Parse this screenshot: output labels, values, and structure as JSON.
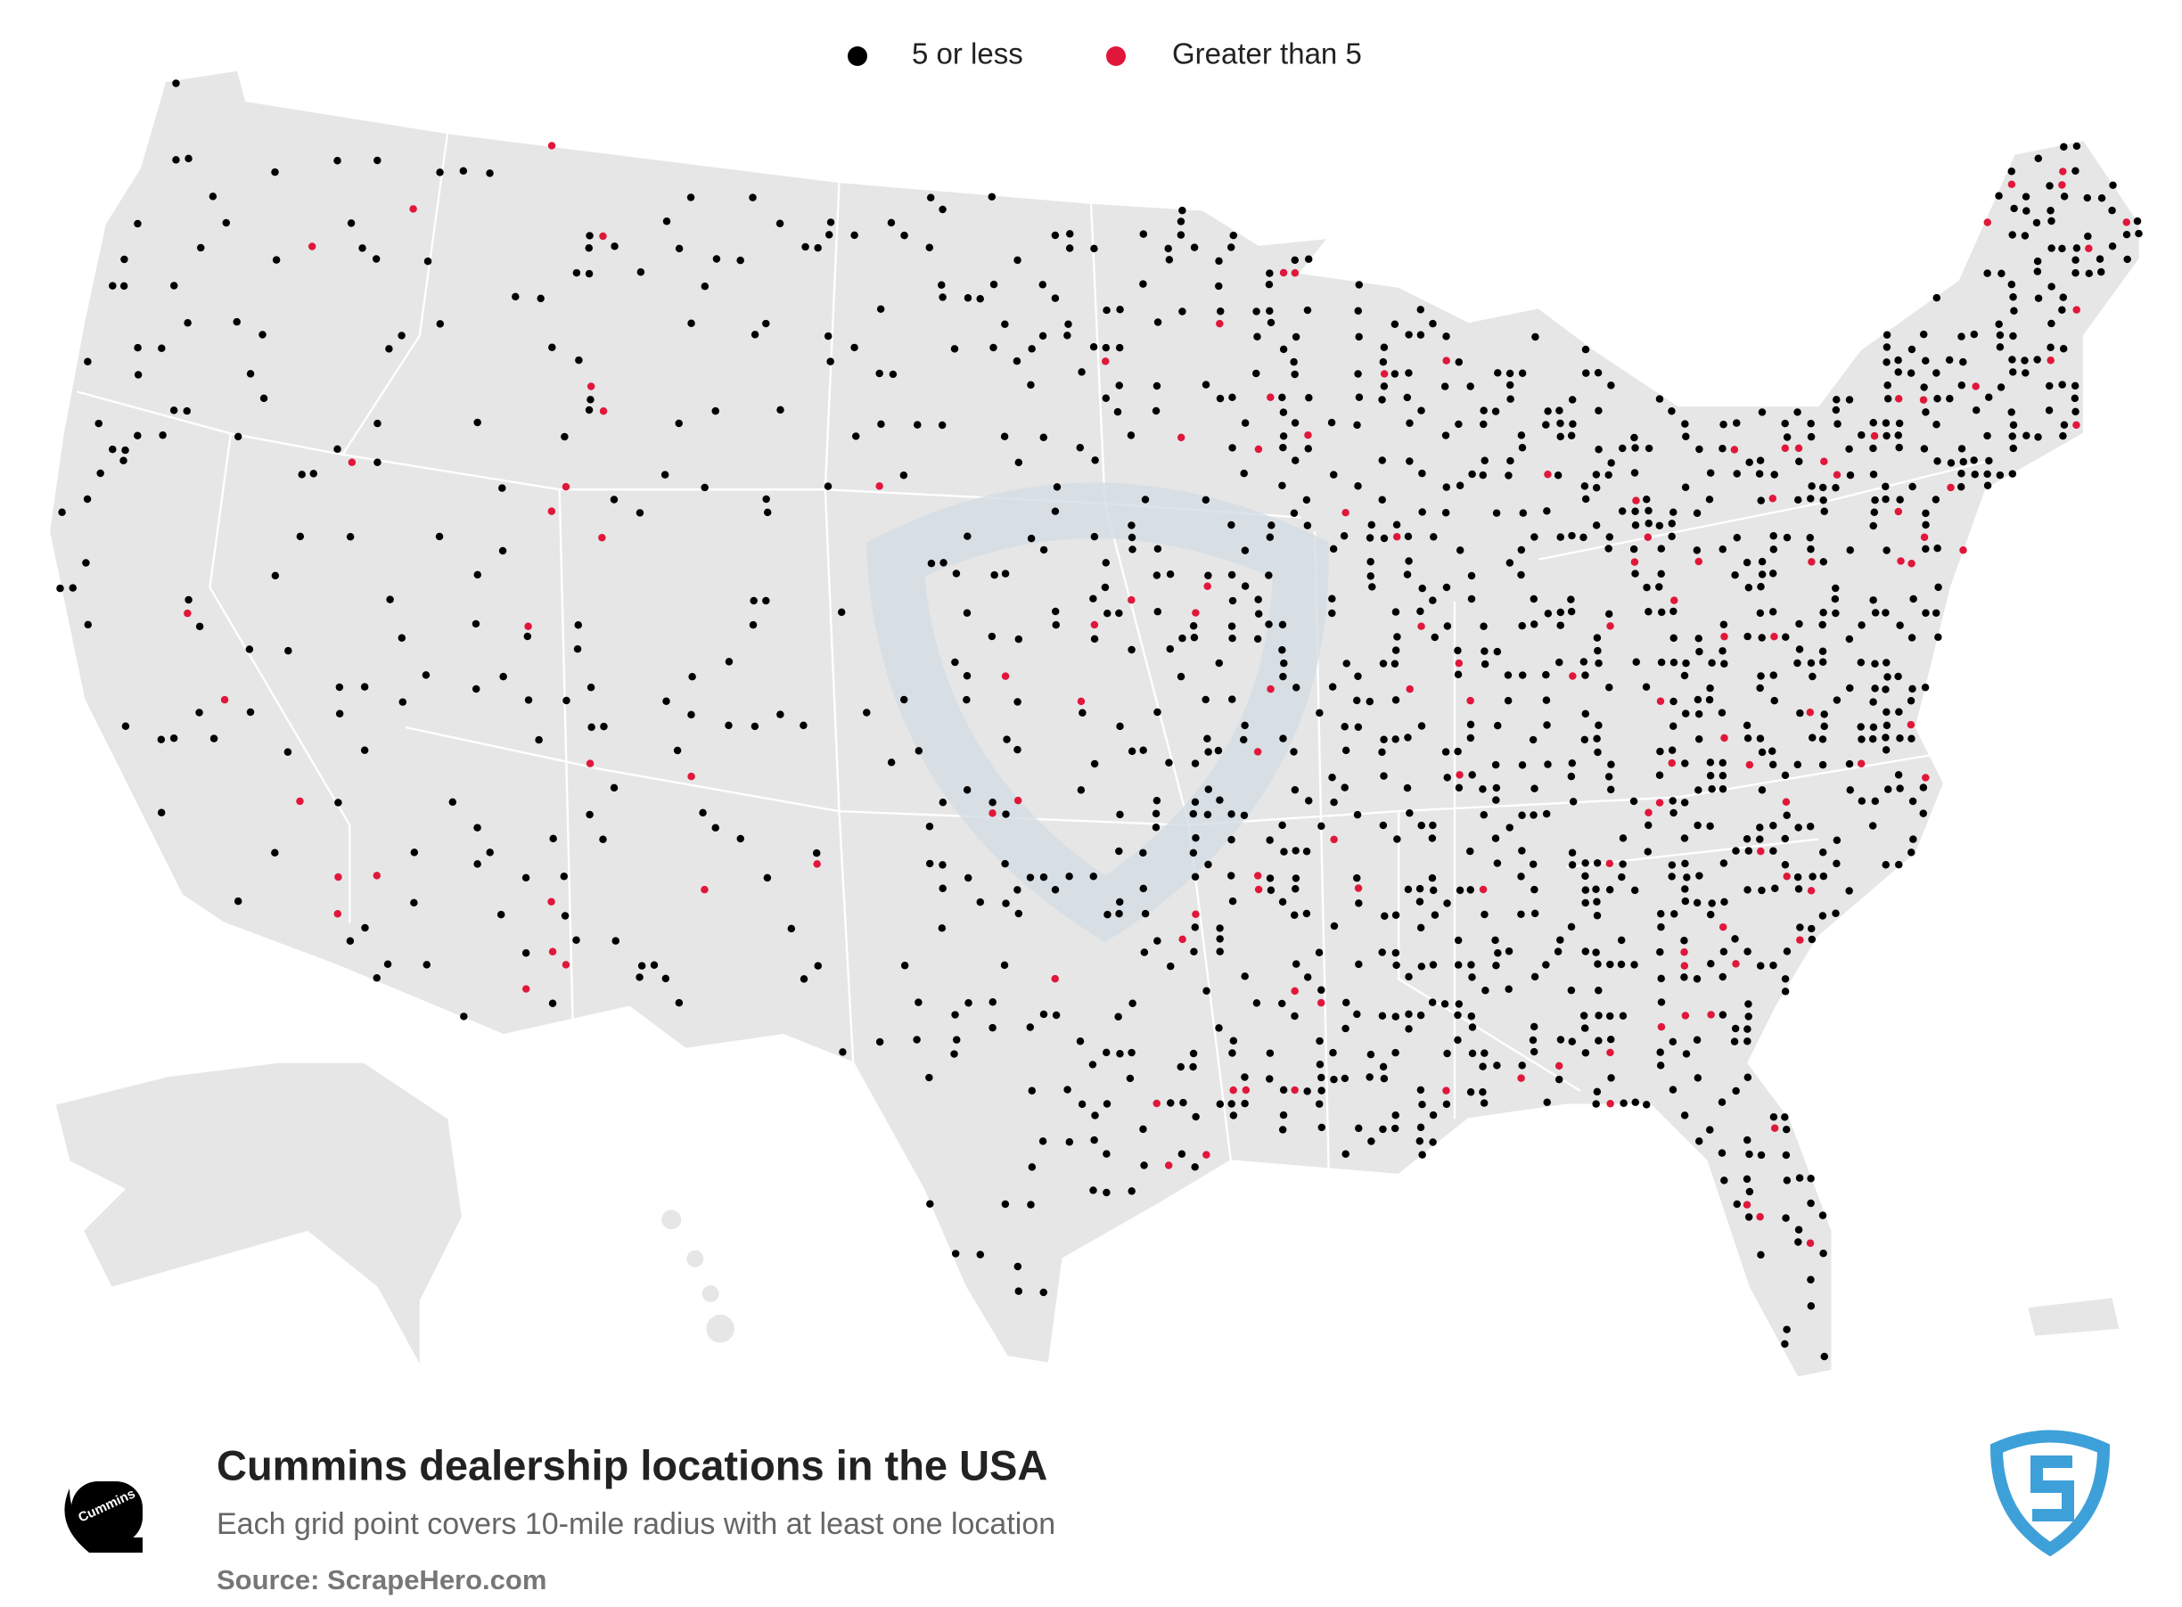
{
  "legend": [
    {
      "label": "5 or less",
      "color": "#000000"
    },
    {
      "label": "Greater than 5",
      "color": "#e0173a"
    }
  ],
  "title": "Cummins dealership locations in the USA",
  "subtitle": "Each grid point covers 10-mile radius with at least one location",
  "source": "Source: ScrapeHero.com",
  "logo": "Cummins"
}
